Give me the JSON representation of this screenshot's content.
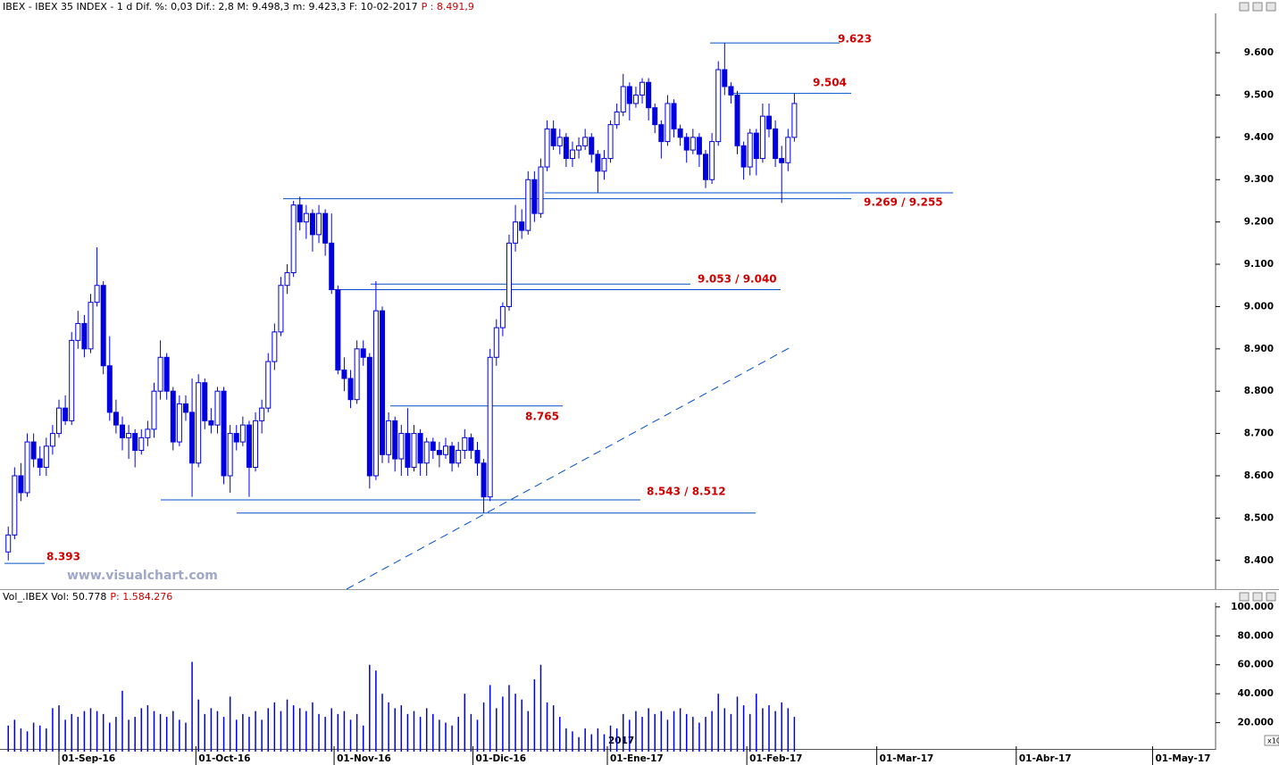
{
  "chart_data": [
    {
      "type": "candlestick",
      "header": "IBEX - IBEX 35 INDEX - 1 d Dif. %: 0,03 Dif.: 2,8 M: 9.498,3 m: 9.423,3 F: 10-02-2017",
      "header_price": "P : 8.491,9",
      "watermark": "www.visualchart.com",
      "year_label": "2017",
      "color": "#0000e0",
      "ylim": [
        8332,
        9693
      ],
      "yticks": [
        {
          "value": 8400,
          "label": "8.400"
        },
        {
          "value": 8500,
          "label": "8.500"
        },
        {
          "value": 8600,
          "label": "8.600"
        },
        {
          "value": 8700,
          "label": "8.700"
        },
        {
          "value": 8800,
          "label": "8.800"
        },
        {
          "value": 8900,
          "label": "8.900"
        },
        {
          "value": 9000,
          "label": "9.000"
        },
        {
          "value": 9100,
          "label": "9.100"
        },
        {
          "value": 9200,
          "label": "9.200"
        },
        {
          "value": 9300,
          "label": "9.300"
        },
        {
          "value": 9400,
          "label": "9.400"
        },
        {
          "value": 9500,
          "label": "9.500"
        },
        {
          "value": 9600,
          "label": "9.600"
        }
      ],
      "xlim": [
        -1.3,
        190.3
      ],
      "xticks": [
        {
          "value": 8,
          "label": "01-Sep-16"
        },
        {
          "value": 29.6,
          "label": "01-Oct-16"
        },
        {
          "value": 51.4,
          "label": "01-Nov-16"
        },
        {
          "value": 73.3,
          "label": "01-Dic-16"
        },
        {
          "value": 94.5,
          "label": "01-Ene-17"
        },
        {
          "value": 116.5,
          "label": "01-Feb-17"
        },
        {
          "value": 137,
          "label": "01-Mar-17"
        },
        {
          "value": 159,
          "label": "01-Abr-17"
        },
        {
          "value": 180.5,
          "label": "01-May-17"
        }
      ],
      "annotations": [
        {
          "label": "9.623",
          "levels": [
            9623
          ]
        },
        {
          "label": "9.504",
          "levels": [
            9504
          ]
        },
        {
          "label": "9.269 / 9.255",
          "levels": [
            9269,
            9255
          ]
        },
        {
          "label": "9.053 / 9.040",
          "levels": [
            9053,
            9040
          ]
        },
        {
          "label": "8.765",
          "levels": [
            8765
          ]
        },
        {
          "label": "8.543 / 8.512",
          "levels": [
            8543,
            8512
          ]
        },
        {
          "label": "8.393",
          "levels": [
            8393
          ]
        }
      ],
      "ohlc": [
        [
          8420,
          8480,
          8400,
          8460
        ],
        [
          8460,
          8620,
          8450,
          8600
        ],
        [
          8600,
          8630,
          8540,
          8560
        ],
        [
          8560,
          8700,
          8550,
          8680
        ],
        [
          8680,
          8700,
          8620,
          8640
        ],
        [
          8640,
          8670,
          8600,
          8620
        ],
        [
          8620,
          8690,
          8600,
          8670
        ],
        [
          8670,
          8720,
          8650,
          8700
        ],
        [
          8700,
          8780,
          8690,
          8760
        ],
        [
          8760,
          8790,
          8720,
          8730
        ],
        [
          8730,
          8940,
          8720,
          8920
        ],
        [
          8920,
          8990,
          8900,
          8960
        ],
        [
          8960,
          8980,
          8880,
          8900
        ],
        [
          8900,
          9030,
          8890,
          9010
        ],
        [
          9010,
          9140,
          9000,
          9050
        ],
        [
          9050,
          9060,
          8840,
          8860
        ],
        [
          8860,
          8930,
          8730,
          8750
        ],
        [
          8750,
          8780,
          8700,
          8720
        ],
        [
          8720,
          8740,
          8660,
          8690
        ],
        [
          8690,
          8720,
          8640,
          8700
        ],
        [
          8700,
          8710,
          8620,
          8660
        ],
        [
          8660,
          8710,
          8650,
          8690
        ],
        [
          8690,
          8730,
          8670,
          8710
        ],
        [
          8710,
          8820,
          8690,
          8800
        ],
        [
          8800,
          8920,
          8780,
          8880
        ],
        [
          8880,
          8890,
          8780,
          8800
        ],
        [
          8800,
          8810,
          8660,
          8680
        ],
        [
          8680,
          8790,
          8670,
          8770
        ],
        [
          8770,
          8790,
          8730,
          8750
        ],
        [
          8750,
          8830,
          8550,
          8630
        ],
        [
          8630,
          8840,
          8620,
          8820
        ],
        [
          8820,
          8830,
          8710,
          8730
        ],
        [
          8730,
          8760,
          8700,
          8720
        ],
        [
          8720,
          8810,
          8700,
          8800
        ],
        [
          8800,
          8810,
          8580,
          8600
        ],
        [
          8600,
          8720,
          8560,
          8700
        ],
        [
          8700,
          8720,
          8660,
          8680
        ],
        [
          8680,
          8740,
          8670,
          8720
        ],
        [
          8720,
          8730,
          8550,
          8620
        ],
        [
          8620,
          8750,
          8610,
          8730
        ],
        [
          8730,
          8780,
          8700,
          8760
        ],
        [
          8760,
          8890,
          8750,
          8870
        ],
        [
          8870,
          8960,
          8850,
          8940
        ],
        [
          8940,
          9070,
          8930,
          9050
        ],
        [
          9050,
          9100,
          9030,
          9080
        ],
        [
          9080,
          9250,
          9070,
          9240
        ],
        [
          9240,
          9260,
          9180,
          9200
        ],
        [
          9200,
          9240,
          9160,
          9220
        ],
        [
          9220,
          9230,
          9130,
          9170
        ],
        [
          9170,
          9240,
          9150,
          9220
        ],
        [
          9220,
          9230,
          9120,
          9150
        ],
        [
          9150,
          9220,
          9030,
          9040
        ],
        [
          9040,
          9050,
          8840,
          8850
        ],
        [
          8850,
          8880,
          8800,
          8830
        ],
        [
          8830,
          8850,
          8760,
          8780
        ],
        [
          8780,
          8920,
          8770,
          8900
        ],
        [
          8900,
          8920,
          8860,
          8880
        ],
        [
          8880,
          8890,
          8570,
          8600
        ],
        [
          8600,
          9060,
          8590,
          8990
        ],
        [
          8990,
          9000,
          8630,
          8650
        ],
        [
          8650,
          8750,
          8630,
          8730
        ],
        [
          8730,
          8740,
          8610,
          8640
        ],
        [
          8640,
          8720,
          8600,
          8700
        ],
        [
          8700,
          8760,
          8600,
          8620
        ],
        [
          8620,
          8720,
          8610,
          8700
        ],
        [
          8700,
          8710,
          8600,
          8630
        ],
        [
          8630,
          8690,
          8600,
          8680
        ],
        [
          8680,
          8690,
          8640,
          8660
        ],
        [
          8660,
          8680,
          8620,
          8650
        ],
        [
          8650,
          8690,
          8640,
          8670
        ],
        [
          8670,
          8680,
          8610,
          8630
        ],
        [
          8630,
          8680,
          8620,
          8660
        ],
        [
          8660,
          8710,
          8640,
          8690
        ],
        [
          8690,
          8700,
          8640,
          8660
        ],
        [
          8660,
          8680,
          8600,
          8630
        ],
        [
          8630,
          8640,
          8512,
          8550
        ],
        [
          8550,
          8900,
          8540,
          8880
        ],
        [
          8880,
          8970,
          8860,
          8950
        ],
        [
          8950,
          9010,
          8930,
          9000
        ],
        [
          9000,
          9170,
          8990,
          9150
        ],
        [
          9150,
          9240,
          9130,
          9200
        ],
        [
          9200,
          9230,
          9160,
          9180
        ],
        [
          9180,
          9320,
          9170,
          9300
        ],
        [
          9300,
          9320,
          9200,
          9220
        ],
        [
          9220,
          9350,
          9210,
          9330
        ],
        [
          9330,
          9440,
          9320,
          9420
        ],
        [
          9420,
          9440,
          9370,
          9380
        ],
        [
          9380,
          9420,
          9360,
          9400
        ],
        [
          9400,
          9410,
          9330,
          9350
        ],
        [
          9350,
          9390,
          9330,
          9370
        ],
        [
          9370,
          9400,
          9350,
          9380
        ],
        [
          9380,
          9420,
          9370,
          9400
        ],
        [
          9400,
          9410,
          9340,
          9360
        ],
        [
          9360,
          9370,
          9270,
          9320
        ],
        [
          9320,
          9370,
          9300,
          9350
        ],
        [
          9350,
          9440,
          9340,
          9430
        ],
        [
          9430,
          9480,
          9420,
          9460
        ],
        [
          9460,
          9550,
          9450,
          9520
        ],
        [
          9520,
          9530,
          9440,
          9480
        ],
        [
          9480,
          9520,
          9470,
          9500
        ],
        [
          9500,
          9540,
          9480,
          9530
        ],
        [
          9530,
          9540,
          9440,
          9470
        ],
        [
          9470,
          9480,
          9410,
          9430
        ],
        [
          9430,
          9440,
          9350,
          9390
        ],
        [
          9390,
          9500,
          9380,
          9480
        ],
        [
          9480,
          9490,
          9400,
          9420
        ],
        [
          9420,
          9430,
          9380,
          9400
        ],
        [
          9400,
          9410,
          9340,
          9370
        ],
        [
          9370,
          9420,
          9360,
          9400
        ],
        [
          9400,
          9410,
          9330,
          9360
        ],
        [
          9360,
          9370,
          9280,
          9300
        ],
        [
          9300,
          9410,
          9290,
          9390
        ],
        [
          9390,
          9580,
          9380,
          9560
        ],
        [
          9560,
          9623,
          9500,
          9520
        ],
        [
          9520,
          9530,
          9480,
          9500
        ],
        [
          9500,
          9510,
          9360,
          9380
        ],
        [
          9380,
          9390,
          9300,
          9330
        ],
        [
          9330,
          9420,
          9310,
          9410
        ],
        [
          9410,
          9420,
          9310,
          9350
        ],
        [
          9350,
          9480,
          9340,
          9450
        ],
        [
          9450,
          9480,
          9400,
          9420
        ],
        [
          9420,
          9440,
          9330,
          9350
        ],
        [
          9350,
          9380,
          9245,
          9340
        ],
        [
          9340,
          9420,
          9320,
          9400
        ],
        [
          9400,
          9504,
          9390,
          9480
        ]
      ]
    },
    {
      "type": "bar",
      "header": "Vol_.IBEX Vol: 50.778",
      "header_price": "P: 1.584.276",
      "multiplier_label": "x10",
      "color": "#0000e0",
      "ylim": [
        0,
        103000
      ],
      "yticks": [
        {
          "value": 20000,
          "label": "20.000"
        },
        {
          "value": 40000,
          "label": "40.000"
        },
        {
          "value": 60000,
          "label": "60.000"
        },
        {
          "value": 80000,
          "label": "80.000"
        },
        {
          "value": 100000,
          "label": "100.000"
        }
      ],
      "values": [
        18000,
        22000,
        16000,
        14000,
        20000,
        18000,
        16000,
        30000,
        32000,
        22000,
        26000,
        24000,
        28000,
        30000,
        28000,
        26000,
        20000,
        24000,
        42000,
        22000,
        24000,
        30000,
        32000,
        28000,
        26000,
        24000,
        28000,
        22000,
        20000,
        62000,
        36000,
        26000,
        30000,
        28000,
        24000,
        38000,
        22000,
        26000,
        24000,
        28000,
        22000,
        30000,
        34000,
        28000,
        36000,
        32000,
        30000,
        28000,
        34000,
        26000,
        24000,
        30000,
        26000,
        28000,
        22000,
        26000,
        18000,
        60000,
        56000,
        40000,
        34000,
        30000,
        32000,
        26000,
        28000,
        24000,
        30000,
        26000,
        22000,
        20000,
        18000,
        24000,
        40000,
        26000,
        22000,
        34000,
        46000,
        30000,
        38000,
        46000,
        40000,
        36000,
        28000,
        50000,
        60000,
        34000,
        32000,
        24000,
        16000,
        14000,
        10000,
        16000,
        12000,
        16000,
        12000,
        18000,
        16000,
        26000,
        22000,
        28000,
        24000,
        30000,
        26000,
        28000,
        22000,
        28000,
        30000,
        26000,
        24000,
        20000,
        24000,
        28000,
        40000,
        30000,
        26000,
        38000,
        32000,
        26000,
        40000,
        30000,
        32000,
        28000,
        34000,
        30000,
        24000
      ]
    }
  ]
}
